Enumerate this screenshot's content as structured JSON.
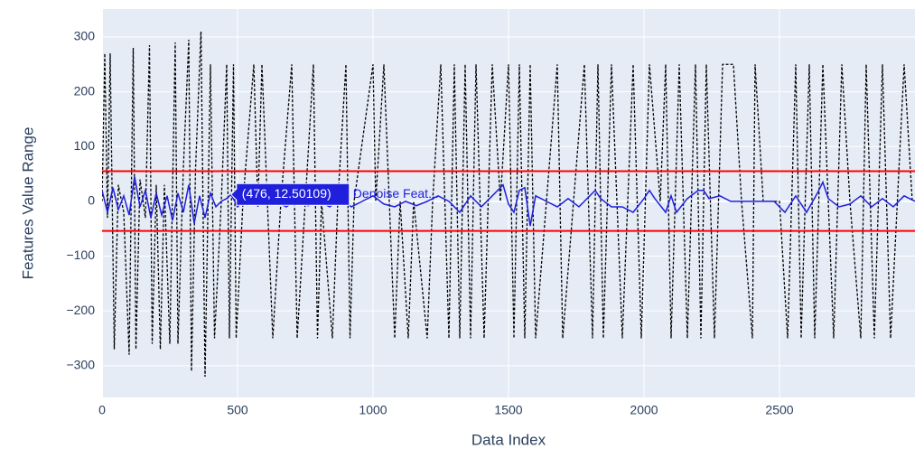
{
  "chart_data": {
    "type": "line",
    "x_title": "Data Index",
    "y_title": "Features Value Range",
    "xlim": [
      0,
      3000
    ],
    "ylim": [
      -358,
      351
    ],
    "xticks": [
      0,
      500,
      1000,
      1500,
      2000,
      2500
    ],
    "yticks": [
      {
        "value": -300,
        "label": "−300"
      },
      {
        "value": -200,
        "label": "−200"
      },
      {
        "value": -100,
        "label": "−100"
      },
      0,
      100,
      200,
      300
    ],
    "grid": true,
    "background": "#e5ecf6",
    "hlines": [
      55,
      -54
    ],
    "hline_color": "#ff0000",
    "series": [
      {
        "color": "#000000",
        "dash": true,
        "x": [
          0,
          10,
          20,
          30,
          45,
          60,
          80,
          100,
          115,
          125,
          140,
          160,
          175,
          185,
          200,
          215,
          230,
          250,
          270,
          280,
          300,
          320,
          330,
          345,
          365,
          380,
          400,
          415,
          440,
          460,
          470,
          485,
          495,
          520,
          560,
          575,
          590,
          610,
          630,
          660,
          700,
          720,
          750,
          780,
          795,
          810,
          850,
          870,
          900,
          915,
          930,
          1000,
          1010,
          1040,
          1080,
          1100,
          1130,
          1150,
          1200,
          1220,
          1250,
          1280,
          1300,
          1320,
          1340,
          1360,
          1380,
          1410,
          1440,
          1470,
          1500,
          1520,
          1540,
          1560,
          1580,
          1600,
          1640,
          1680,
          1700,
          1740,
          1780,
          1810,
          1830,
          1850,
          1880,
          1920,
          1960,
          1990,
          2020,
          2060,
          2080,
          2100,
          2130,
          2160,
          2190,
          2210,
          2230,
          2260,
          2290,
          2330,
          2360,
          2400,
          2410,
          2440,
          2500,
          2530,
          2560,
          2580,
          2610,
          2630,
          2660,
          2700,
          2730,
          2760,
          2800,
          2820,
          2850,
          2880,
          2910,
          2960,
          2990
        ],
        "values": [
          0,
          270,
          -30,
          270,
          -270,
          30,
          -20,
          -280,
          280,
          -270,
          40,
          -30,
          285,
          -260,
          30,
          -270,
          30,
          -260,
          290,
          -260,
          60,
          295,
          -310,
          60,
          310,
          -320,
          250,
          -250,
          0,
          250,
          -250,
          250,
          -250,
          0,
          250,
          -10,
          250,
          0,
          -250,
          0,
          250,
          -250,
          0,
          250,
          -250,
          0,
          -250,
          0,
          250,
          -250,
          0,
          250,
          0,
          250,
          -250,
          0,
          -250,
          0,
          -250,
          0,
          250,
          -250,
          250,
          -250,
          250,
          -250,
          250,
          -250,
          250,
          0,
          250,
          -250,
          250,
          -250,
          250,
          -250,
          0,
          250,
          -250,
          0,
          250,
          -250,
          250,
          -250,
          250,
          -250,
          250,
          -250,
          250,
          0,
          250,
          -250,
          250,
          -250,
          250,
          -250,
          250,
          -250,
          250,
          250,
          0,
          -250,
          250,
          0,
          0,
          -250,
          250,
          -250,
          250,
          -250,
          250,
          -250,
          250,
          0,
          -250,
          250,
          -250,
          250,
          -250,
          250,
          0
        ]
      },
      {
        "color": "#1f1fdc",
        "dash": false,
        "x": [
          0,
          20,
          40,
          60,
          80,
          100,
          120,
          140,
          160,
          180,
          200,
          220,
          240,
          260,
          280,
          300,
          320,
          340,
          360,
          380,
          400,
          420,
          440,
          460,
          476,
          500,
          520,
          560,
          600,
          640,
          680,
          720,
          760,
          800,
          840,
          880,
          920,
          960,
          1000,
          1040,
          1080,
          1120,
          1160,
          1200,
          1240,
          1280,
          1320,
          1340,
          1360,
          1400,
          1440,
          1460,
          1480,
          1500,
          1520,
          1540,
          1560,
          1580,
          1600,
          1640,
          1680,
          1720,
          1760,
          1800,
          1820,
          1840,
          1880,
          1920,
          1960,
          2000,
          2020,
          2040,
          2080,
          2100,
          2120,
          2160,
          2200,
          2220,
          2240,
          2280,
          2320,
          2360,
          2400,
          2440,
          2480,
          2520,
          2560,
          2600,
          2640,
          2660,
          2680,
          2720,
          2760,
          2800,
          2840,
          2880,
          2920,
          2960,
          3000
        ],
        "values": [
          20,
          -20,
          25,
          -15,
          10,
          -25,
          45,
          -10,
          20,
          -30,
          15,
          -25,
          10,
          -35,
          15,
          -20,
          30,
          -40,
          10,
          -30,
          15,
          -10,
          0,
          5,
          12.50109,
          -10,
          0,
          10,
          -5,
          0,
          -10,
          5,
          -8,
          0,
          -10,
          5,
          -10,
          0,
          10,
          -5,
          -10,
          0,
          -8,
          0,
          10,
          0,
          -20,
          -5,
          10,
          -10,
          10,
          20,
          30,
          -5,
          -20,
          20,
          25,
          -45,
          10,
          0,
          -10,
          5,
          -10,
          10,
          20,
          5,
          -10,
          -10,
          -20,
          5,
          20,
          5,
          -20,
          10,
          -20,
          5,
          20,
          20,
          5,
          10,
          0,
          0,
          0,
          0,
          0,
          -20,
          10,
          -20,
          15,
          35,
          5,
          -10,
          -5,
          10,
          -10,
          5,
          -10,
          10,
          0
        ]
      }
    ],
    "hover": {
      "x": 476,
      "y": 12.50109,
      "label": "(476, 12.50109)",
      "name": "Denoise Feat...",
      "color": "#1f1fdc"
    }
  }
}
